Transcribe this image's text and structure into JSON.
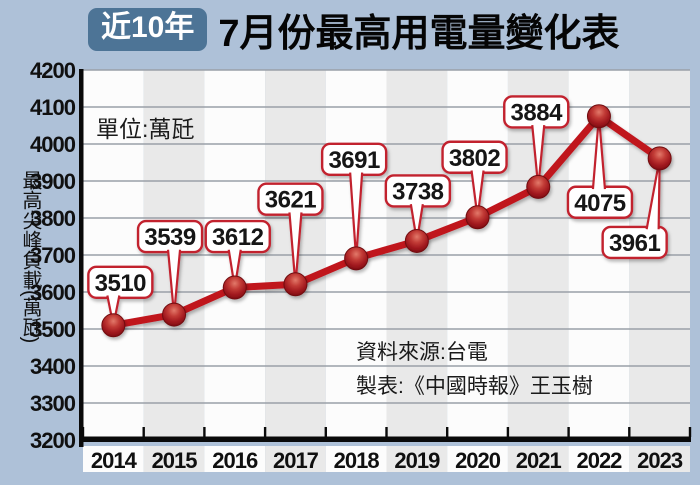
{
  "title": {
    "badge": "近10年",
    "text": "7月份最高用電量變化表"
  },
  "unit_label": "單位:萬瓩",
  "y_axis_title": "最高尖峰負載(萬瓩)",
  "source": {
    "line1": "資料來源:台電",
    "line2": "製表:《中國時報》王玉樹"
  },
  "colors": {
    "background": "#aec1d8",
    "badge": "#4d7496",
    "line": "#c0121f",
    "marker_dark": "#6f0a10",
    "marker_light": "#e2796a",
    "callout_border": "#c2202e",
    "band_white": "#fcfcfc",
    "band_gray": "#e9e9e9",
    "gridline": "#9aa0a8",
    "axis": "#0a0a0a"
  },
  "chart_data": {
    "type": "line",
    "title": "近10年 7月份最高用電量變化表",
    "categories": [
      "2014",
      "2015",
      "2016",
      "2017",
      "2018",
      "2019",
      "2020",
      "2021",
      "2022",
      "2023"
    ],
    "values": [
      3510,
      3539,
      3612,
      3621,
      3691,
      3738,
      3802,
      3884,
      4075,
      3961
    ],
    "unit": "萬瓩",
    "xlabel": "",
    "ylabel": "最高尖峰負載(萬瓩)",
    "ylim": [
      3200,
      4200
    ],
    "ytick_step": 100,
    "grid": "horizontal",
    "legend": "none",
    "data_labels": true
  }
}
